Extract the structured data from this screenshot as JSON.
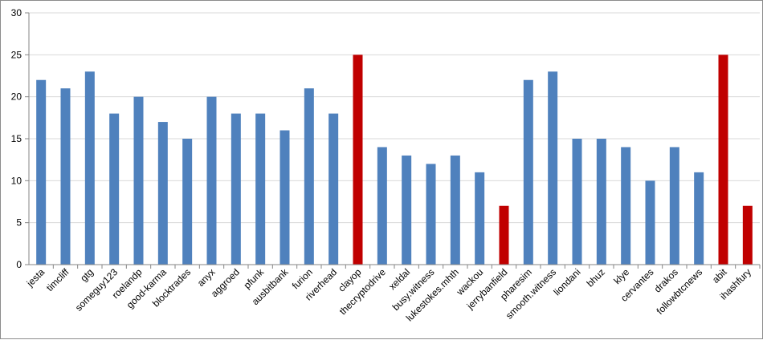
{
  "chart_data": {
    "type": "bar",
    "title": "",
    "xlabel": "",
    "ylabel": "",
    "ylim": [
      0,
      30
    ],
    "yticks": [
      0,
      5,
      10,
      15,
      20,
      25,
      30
    ],
    "grid": "horizontal major gridlines",
    "legend": "none",
    "categories": [
      "jesta",
      "timcliff",
      "gtg",
      "someguy123",
      "roelandp",
      "good-karma",
      "blocktrades",
      "anyx",
      "aggroed",
      "pfunk",
      "ausbitbank",
      "furion",
      "riverhead",
      "clayop",
      "thecryptodrive",
      "xeldal",
      "busy.witness",
      "lukestokes.mhth",
      "wackou",
      "jerrybanfield",
      "pharesim",
      "smooth.witness",
      "liondani",
      "bhuz",
      "klye",
      "cervantes",
      "drakos",
      "followbtcnews",
      "abit",
      "ihashfury"
    ],
    "values": [
      22,
      21,
      23,
      18,
      20,
      17,
      15,
      20,
      18,
      18,
      16,
      21,
      18,
      25,
      14,
      13,
      12,
      13,
      11,
      7,
      22,
      23,
      15,
      15,
      14,
      10,
      14,
      11,
      25,
      7
    ],
    "highlighted": [
      "clayop",
      "jerrybanfield",
      "abit",
      "ihashfury"
    ],
    "colors": {
      "bar": "#4f81bd",
      "highlight": "#c00000",
      "grid": "#d9d9d9",
      "axis": "#868686"
    }
  }
}
